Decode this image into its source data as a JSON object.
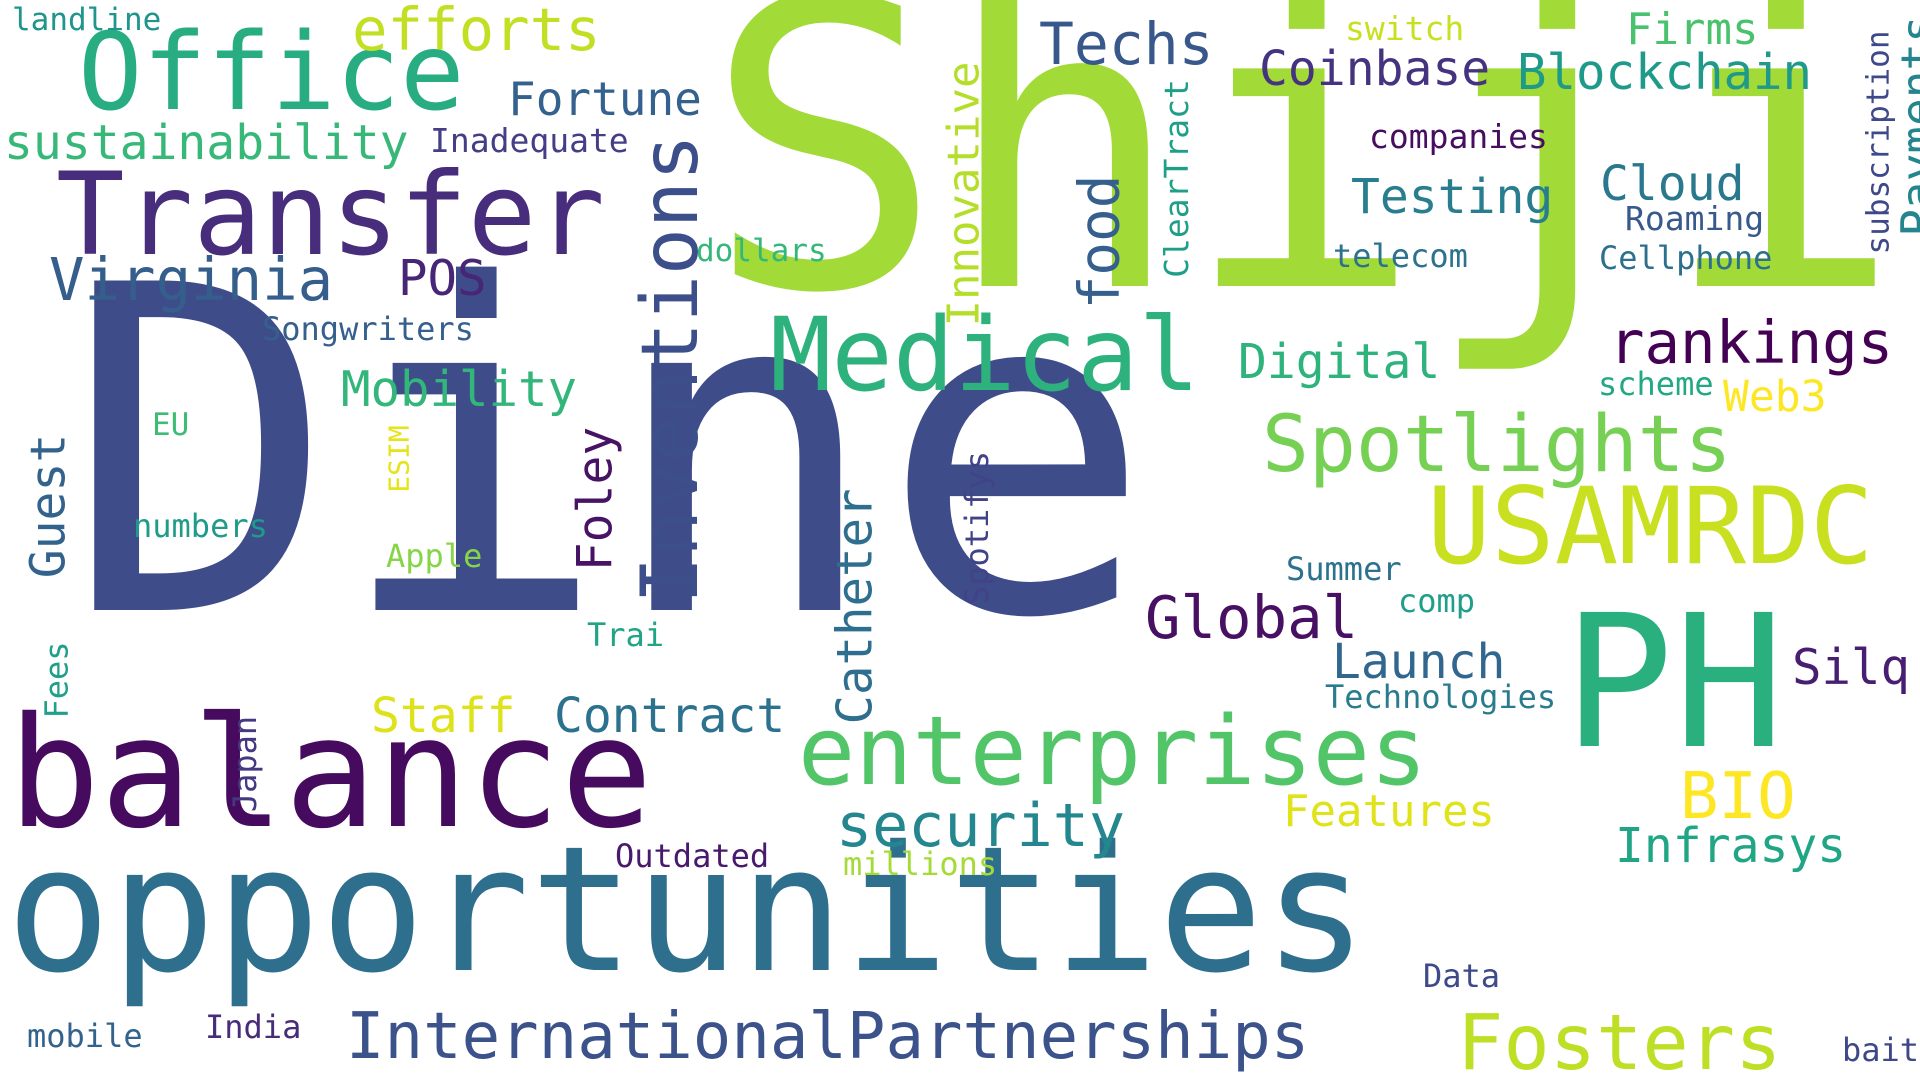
{
  "colors": {
    "background": "#ffffff",
    "palette": [
      "#440154",
      "#3b528b",
      "#21918c",
      "#5ec962",
      "#fde725"
    ]
  },
  "words": [
    {
      "text": "Dine",
      "color": "#3e4c8a"
    },
    {
      "text": "Shiji",
      "color": "#a2da37"
    },
    {
      "text": "opportunities",
      "color": "#2e6f8e"
    },
    {
      "text": "balance",
      "color": "#460b5e"
    },
    {
      "text": "Transfer",
      "color": "#472d7b"
    },
    {
      "text": "Office",
      "color": "#27ad81"
    },
    {
      "text": "Medical",
      "color": "#2db27d"
    },
    {
      "text": "enterprises",
      "color": "#52c569"
    },
    {
      "text": "USAMRDC",
      "color": "#c8e020"
    },
    {
      "text": "PH",
      "color": "#2ab07f"
    },
    {
      "text": "Inventions",
      "color": "#3c4f8a"
    },
    {
      "text": "Spotlights",
      "color": "#75d054"
    },
    {
      "text": "InternationalPartnerships",
      "color": "#3b528b"
    },
    {
      "text": "Fosters",
      "color": "#bddf26"
    },
    {
      "text": "efforts",
      "color": "#c2df23"
    },
    {
      "text": "Virginia",
      "color": "#355e8d"
    },
    {
      "text": "sustainability",
      "color": "#37b878"
    },
    {
      "text": "Techs",
      "color": "#38588c"
    },
    {
      "text": "Coinbase",
      "color": "#46337f"
    },
    {
      "text": "Blockchain",
      "color": "#1f9a8a"
    },
    {
      "text": "Firms",
      "color": "#4ac16d"
    },
    {
      "text": "switch",
      "color": "#c8e020"
    },
    {
      "text": "subscription",
      "color": "#3e4989"
    },
    {
      "text": "Payments",
      "color": "#25858e"
    },
    {
      "text": "Fortune",
      "color": "#34618d"
    },
    {
      "text": "Inadequate",
      "color": "#433e85"
    },
    {
      "text": "landline",
      "color": "#1f958b"
    },
    {
      "text": "POS",
      "color": "#482677"
    },
    {
      "text": "Innovative",
      "color": "#b5de2b"
    },
    {
      "text": "food",
      "color": "#355f8d"
    },
    {
      "text": "ClearTract",
      "color": "#1f9f88"
    },
    {
      "text": "companies",
      "color": "#470d60"
    },
    {
      "text": "Testing",
      "color": "#287d8e"
    },
    {
      "text": "Cloud",
      "color": "#2a788e"
    },
    {
      "text": "Roaming",
      "color": "#38598c"
    },
    {
      "text": "Cellphone",
      "color": "#2d708e"
    },
    {
      "text": "telecom",
      "color": "#2c718e"
    },
    {
      "text": "dollars",
      "color": "#35b779"
    },
    {
      "text": "rankings",
      "color": "#440154"
    },
    {
      "text": "Digital",
      "color": "#2eb37c"
    },
    {
      "text": "scheme",
      "color": "#22a884"
    },
    {
      "text": "Web3",
      "color": "#fde725"
    },
    {
      "text": "Songwriters",
      "color": "#355f8d"
    },
    {
      "text": "Mobility",
      "color": "#32b67a"
    },
    {
      "text": "Guest",
      "color": "#33638d"
    },
    {
      "text": "EU",
      "color": "#3dbc74"
    },
    {
      "text": "ESIM",
      "color": "#e5e419"
    },
    {
      "text": "numbers",
      "color": "#1e9b8a"
    },
    {
      "text": "Apple",
      "color": "#86d549"
    },
    {
      "text": "Foley",
      "color": "#471365"
    },
    {
      "text": "Catheter",
      "color": "#2e6e8e"
    },
    {
      "text": "Spotifys",
      "color": "#414287"
    },
    {
      "text": "Global",
      "color": "#471063"
    },
    {
      "text": "Summer",
      "color": "#2c728e"
    },
    {
      "text": "comp",
      "color": "#1f9e89"
    },
    {
      "text": "Launch",
      "color": "#31668e"
    },
    {
      "text": "Technologies",
      "color": "#297b8e"
    },
    {
      "text": "Silq",
      "color": "#481f70"
    },
    {
      "text": "Trai",
      "color": "#20a486"
    },
    {
      "text": "Fees",
      "color": "#1fa088"
    },
    {
      "text": "Staff",
      "color": "#dde318"
    },
    {
      "text": "Contract",
      "color": "#2c728e"
    },
    {
      "text": "security",
      "color": "#24868e"
    },
    {
      "text": "Features",
      "color": "#dfe318"
    },
    {
      "text": "BIO",
      "color": "#fde725"
    },
    {
      "text": "Infrasys",
      "color": "#21a685"
    },
    {
      "text": "Japan",
      "color": "#453882"
    },
    {
      "text": "Outdated",
      "color": "#481a6c"
    },
    {
      "text": "millions",
      "color": "#a5db36"
    },
    {
      "text": "Data",
      "color": "#3e4a89"
    },
    {
      "text": "mobile",
      "color": "#33638d"
    },
    {
      "text": "India",
      "color": "#472c7a"
    },
    {
      "text": "bait",
      "color": "#3f4788"
    }
  ]
}
